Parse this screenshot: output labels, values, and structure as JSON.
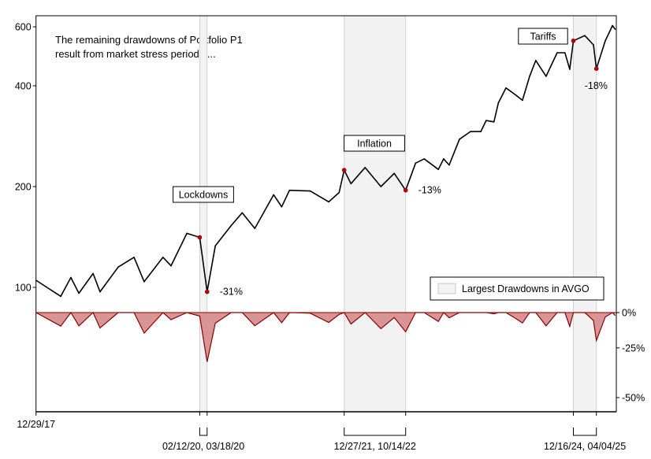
{
  "chart_data": {
    "type": "line",
    "annotation_text": [
      "The remaining drawdowns of Portfolio P1",
      "result from market stress periods ..."
    ],
    "y_scale": "log",
    "y_ticks": [
      100,
      200,
      400,
      600
    ],
    "y_tick_labels": [
      "100",
      "200",
      "400",
      "600"
    ],
    "drawdown_panel": {
      "type": "area",
      "y_scale": "log(1+drawdown)",
      "y_ticks": [
        0,
        -0.25,
        -0.5
      ],
      "y_tick_labels": [
        "0%",
        "-25%",
        "-50%"
      ],
      "fill_color": "#d99595",
      "line_color": "#8b0000"
    },
    "x_start_label": "12/29/17",
    "x_range": [
      "2017-12-29",
      "2025-07-02"
    ],
    "legend": {
      "label": "Largest Drawdowns in AVGO",
      "placement": "center-right"
    },
    "shade_color": "#f2f2f2",
    "marker_color": "#c00000",
    "periods": [
      {
        "name": "Lockdowns",
        "start": "2020-02-12",
        "end": "2020-03-18",
        "range_label": "02/12/20, 03/18/20",
        "drawdown_label": "-31%"
      },
      {
        "name": "Inflation",
        "start": "2021-12-27",
        "end": "2022-10-14",
        "range_label": "12/27/21, 10/14/22",
        "drawdown_label": "-13%"
      },
      {
        "name": "Tariffs",
        "start": "2024-12-16",
        "end": "2025-04-04",
        "range_label": "12/16/24, 04/04/25",
        "drawdown_label": "-18%"
      }
    ],
    "series": [
      {
        "x": "2017-12-29",
        "y": 105
      },
      {
        "x": "2018-04-25",
        "y": 94
      },
      {
        "x": "2018-06-12",
        "y": 107
      },
      {
        "x": "2018-07-20",
        "y": 96
      },
      {
        "x": "2018-09-25",
        "y": 110
      },
      {
        "x": "2018-10-28",
        "y": 97
      },
      {
        "x": "2019-01-22",
        "y": 115
      },
      {
        "x": "2019-04-07",
        "y": 123
      },
      {
        "x": "2019-05-25",
        "y": 104
      },
      {
        "x": "2019-08-22",
        "y": 123
      },
      {
        "x": "2019-09-29",
        "y": 116
      },
      {
        "x": "2019-12-13",
        "y": 145
      },
      {
        "x": "2020-02-12",
        "y": 141
      },
      {
        "x": "2020-03-18",
        "y": 97
      },
      {
        "x": "2020-04-26",
        "y": 133
      },
      {
        "x": "2020-07-10",
        "y": 153
      },
      {
        "x": "2020-08-31",
        "y": 167
      },
      {
        "x": "2020-10-30",
        "y": 150
      },
      {
        "x": "2021-01-27",
        "y": 189
      },
      {
        "x": "2021-03-06",
        "y": 174
      },
      {
        "x": "2021-04-12",
        "y": 195
      },
      {
        "x": "2021-07-19",
        "y": 194
      },
      {
        "x": "2021-10-15",
        "y": 180
      },
      {
        "x": "2021-12-03",
        "y": 192
      },
      {
        "x": "2021-12-27",
        "y": 224
      },
      {
        "x": "2022-01-28",
        "y": 204
      },
      {
        "x": "2022-04-05",
        "y": 228
      },
      {
        "x": "2022-06-19",
        "y": 200
      },
      {
        "x": "2022-08-21",
        "y": 219
      },
      {
        "x": "2022-10-14",
        "y": 195
      },
      {
        "x": "2022-11-30",
        "y": 235
      },
      {
        "x": "2023-01-10",
        "y": 242
      },
      {
        "x": "2023-03-18",
        "y": 225
      },
      {
        "x": "2023-04-12",
        "y": 242
      },
      {
        "x": "2023-05-08",
        "y": 232
      },
      {
        "x": "2023-06-26",
        "y": 277
      },
      {
        "x": "2023-08-17",
        "y": 292
      },
      {
        "x": "2023-10-05",
        "y": 292
      },
      {
        "x": "2023-10-30",
        "y": 315
      },
      {
        "x": "2023-12-06",
        "y": 312
      },
      {
        "x": "2023-12-27",
        "y": 356
      },
      {
        "x": "2024-02-01",
        "y": 394
      },
      {
        "x": "2024-03-14",
        "y": 377
      },
      {
        "x": "2024-04-19",
        "y": 362
      },
      {
        "x": "2024-05-23",
        "y": 427
      },
      {
        "x": "2024-06-21",
        "y": 476
      },
      {
        "x": "2024-08-09",
        "y": 427
      },
      {
        "x": "2024-09-30",
        "y": 502
      },
      {
        "x": "2024-11-06",
        "y": 502
      },
      {
        "x": "2024-11-29",
        "y": 448
      },
      {
        "x": "2024-12-16",
        "y": 545
      },
      {
        "x": "2025-02-08",
        "y": 565
      },
      {
        "x": "2025-03-21",
        "y": 530
      },
      {
        "x": "2025-04-04",
        "y": 450
      },
      {
        "x": "2025-05-16",
        "y": 545
      },
      {
        "x": "2025-06-19",
        "y": 605
      },
      {
        "x": "2025-07-02",
        "y": 590
      }
    ]
  }
}
